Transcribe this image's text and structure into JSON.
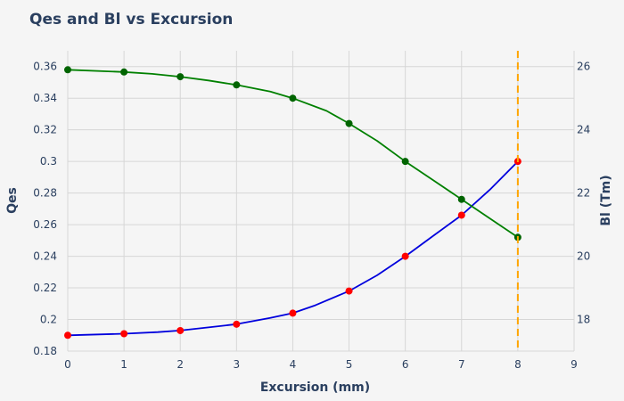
{
  "chart_data": {
    "type": "line",
    "title": "Qes and Bl vs Excursion",
    "xlabel": "Excursion (mm)",
    "ylabel": "Qes",
    "y2label": "Bl (Tm)",
    "xlim": [
      0,
      9
    ],
    "ylim": [
      0.18,
      0.37
    ],
    "y2lim": [
      17.0,
      26.5
    ],
    "x_ticks": [
      0,
      1,
      2,
      3,
      4,
      5,
      6,
      7,
      8,
      9
    ],
    "y_ticks": [
      0.18,
      0.2,
      0.22,
      0.24,
      0.26,
      0.28,
      0.3,
      0.32,
      0.34,
      0.36
    ],
    "y_tick_labels": [
      "0.18",
      "0.2",
      "0.22",
      "0.24",
      "0.26",
      "0.28",
      "0.3",
      "0.32",
      "0.34",
      "0.36"
    ],
    "y2_ticks": [
      18,
      20,
      22,
      24,
      26
    ],
    "y2_tick_labels": [
      "18",
      "20",
      "22",
      "24",
      "26"
    ],
    "grid": true,
    "series": [
      {
        "name": "Qes",
        "axis": "y",
        "line_color": "#0000dd",
        "marker_color": "#ff0000",
        "curve_x": [
          0,
          1,
          1.6,
          2,
          2.5,
          3,
          3.6,
          4,
          4.4,
          5,
          5.5,
          6,
          6.5,
          7,
          7.5,
          8
        ],
        "curve_y": [
          0.19,
          0.191,
          0.192,
          0.193,
          0.195,
          0.197,
          0.201,
          0.204,
          0.209,
          0.218,
          0.228,
          0.24,
          0.253,
          0.266,
          0.282,
          0.3
        ],
        "marker_x": [
          0,
          1,
          2,
          3,
          4,
          5,
          6,
          7,
          8
        ],
        "marker_y": [
          0.19,
          0.191,
          0.193,
          0.197,
          0.204,
          0.218,
          0.24,
          0.266,
          0.3
        ]
      },
      {
        "name": "Bl",
        "axis": "y2",
        "line_color": "#008000",
        "marker_color": "#006400",
        "curve_x": [
          0,
          1,
          1.5,
          2,
          2.5,
          3,
          3.6,
          4,
          4.6,
          5,
          5.5,
          6,
          6.5,
          7,
          7.5,
          8
        ],
        "curve_y": [
          25.9,
          25.83,
          25.77,
          25.68,
          25.56,
          25.42,
          25.21,
          25.0,
          24.6,
          24.2,
          23.65,
          23.0,
          22.4,
          21.8,
          21.2,
          20.6
        ],
        "marker_x": [
          0,
          1,
          2,
          3,
          4,
          5,
          6,
          7,
          8
        ],
        "marker_y": [
          25.9,
          25.83,
          25.68,
          25.42,
          25.0,
          24.2,
          23.0,
          21.8,
          20.6
        ]
      }
    ],
    "vline": {
      "x": 8,
      "color": "#ffa500",
      "style": "dashed"
    }
  }
}
